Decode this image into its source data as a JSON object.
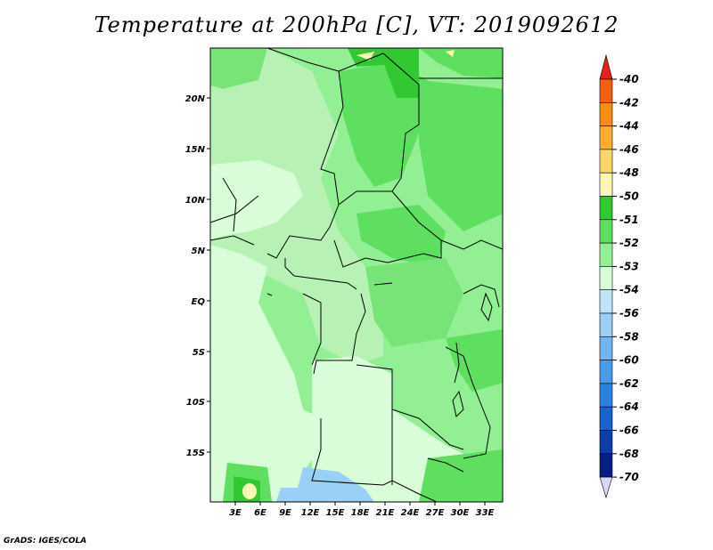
{
  "title": "Temperature at 200hPa [C], VT: 2019092612",
  "credit": "GrADS: IGES/COLA",
  "map": {
    "region": "Central Africa",
    "lat_labels": [
      "20N",
      "15N",
      "10N",
      "5N",
      "EQ",
      "5S",
      "10S",
      "15S"
    ],
    "lon_labels": [
      "3E",
      "6E",
      "9E",
      "12E",
      "15E",
      "18E",
      "21E",
      "24E",
      "27E",
      "30E",
      "33E"
    ]
  },
  "colorbar": {
    "levels": [
      "-40",
      "-42",
      "-44",
      "-46",
      "-48",
      "-50",
      "-51",
      "-52",
      "-53",
      "-54",
      "-56",
      "-58",
      "-60",
      "-62",
      "-64",
      "-66",
      "-68",
      "-70"
    ],
    "colors": {
      "top_arrow": "#e8201a",
      "segments": [
        "#f0320f",
        "#f65e0f",
        "#fa8c14",
        "#fdae2e",
        "#fdd66b",
        "#fdf6b4",
        "#32c832",
        "#5fdf5f",
        "#93ef93",
        "#d9fcd9",
        "#bfe5fa",
        "#9ad0f6",
        "#72b6f1",
        "#4a9ce9",
        "#2a82dd",
        "#1664cc",
        "#0a3cab",
        "#051e82"
      ],
      "bottom_arrow": "#d8d8f8"
    }
  }
}
